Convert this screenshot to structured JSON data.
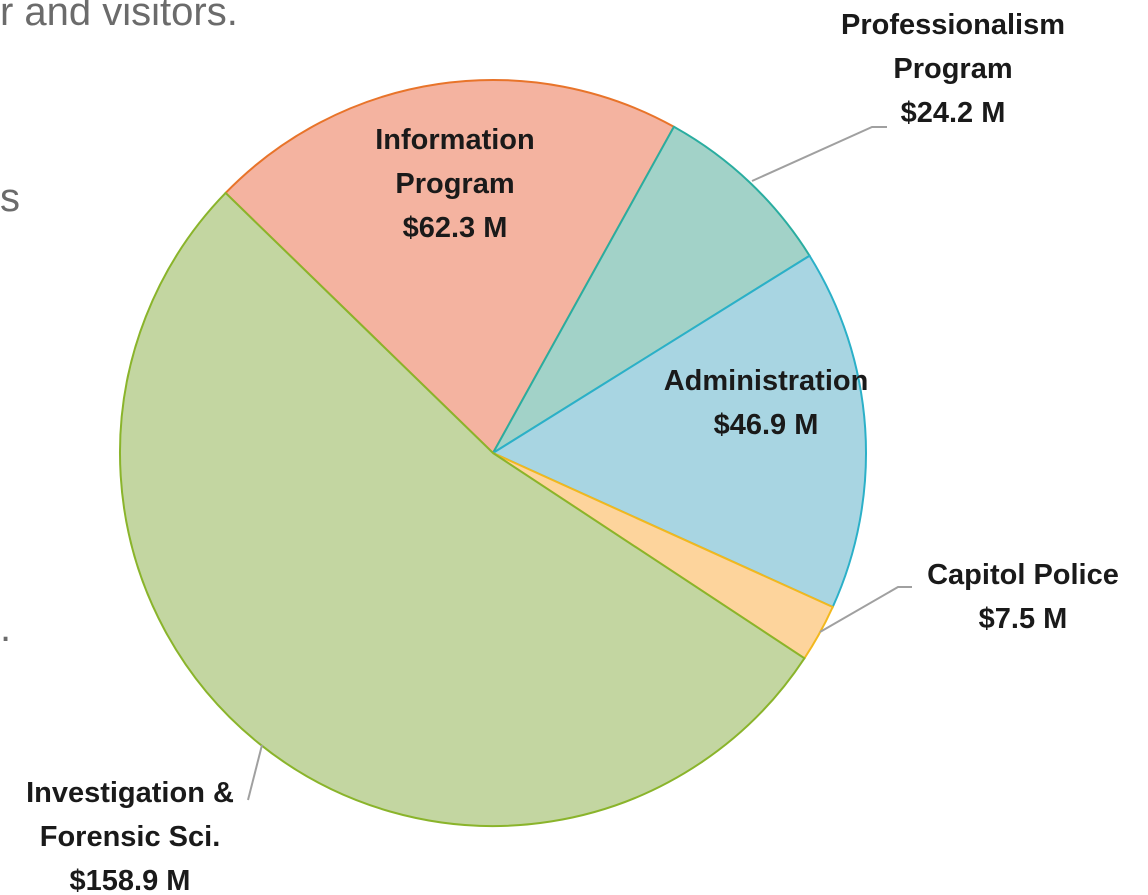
{
  "background_text": [
    "r and visitors.",
    "s",
    "."
  ],
  "chart_data": {
    "type": "pie",
    "categories": [
      "Information Program",
      "Professionalism Program",
      "Administration",
      "Capitol Police",
      "Investigation & Forensic Sci."
    ],
    "values": [
      62.3,
      24.2,
      46.9,
      7.5,
      158.9
    ],
    "value_labels": [
      "$62.3 M",
      "$24.2 M",
      "$46.9 M",
      "$7.5 M",
      "$158.9 M"
    ],
    "colors": [
      "#f4b3a0",
      "#a2d2c8",
      "#a8d5e2",
      "#fdd49c",
      "#c3d6a1"
    ],
    "edge_colors": [
      "#e8742a",
      "#2aada0",
      "#2bb0c8",
      "#f2b81e",
      "#8ab42b"
    ]
  }
}
